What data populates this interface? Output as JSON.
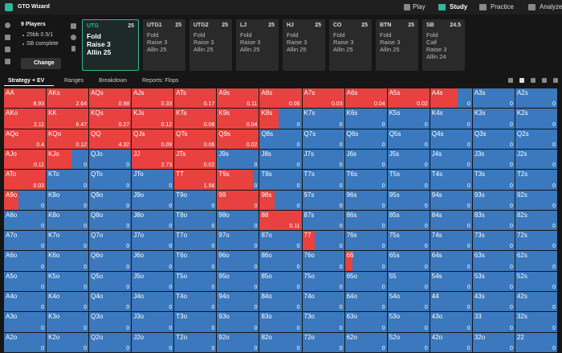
{
  "app": {
    "title": "GTO Wizard",
    "nav": [
      "Play",
      "Study",
      "Practice",
      "Analyze"
    ]
  },
  "settings": {
    "players": "9 Players",
    "stakes": "25bb 0.5/1",
    "status": "SB complete",
    "button": "Change"
  },
  "positions": [
    {
      "name": "UTG",
      "stack": 25,
      "actions": [
        "Fold",
        "Raise 3",
        "Allin 25"
      ]
    },
    {
      "name": "UTG1",
      "stack": 25,
      "actions": [
        "Fold",
        "Raise 3",
        "Allin 25"
      ]
    },
    {
      "name": "UTG2",
      "stack": 25,
      "actions": [
        "Fold",
        "Raise 3",
        "Allin 25"
      ]
    },
    {
      "name": "LJ",
      "stack": 25,
      "actions": [
        "Fold",
        "Raise 3",
        "Allin 25"
      ]
    },
    {
      "name": "HJ",
      "stack": 25,
      "actions": [
        "Fold",
        "Raise 3",
        "Allin 25"
      ]
    },
    {
      "name": "CO",
      "stack": 25,
      "actions": [
        "Fold",
        "Raise 3",
        "Allin 25"
      ]
    },
    {
      "name": "BTN",
      "stack": 25,
      "actions": [
        "Fold",
        "Raise 3",
        "Allin 25"
      ]
    },
    {
      "name": "SB",
      "stack": 24.5,
      "actions": [
        "Fold",
        "Call",
        "Raise 3",
        "Allin 24"
      ]
    }
  ],
  "tabs": [
    "Strategy + EV",
    "Ranges",
    "Breakdown",
    "Reports: Flops"
  ],
  "grid": {
    "hands": [
      [
        "AA",
        "AKs",
        "AQs",
        "AJs",
        "ATs",
        "A9s",
        "A8s",
        "A7s",
        "A6s",
        "A5s",
        "A4s",
        "A3s",
        "A2s"
      ],
      [
        "AKo",
        "KK",
        "KQs",
        "KJs",
        "KTs",
        "K9s",
        "K8s",
        "K7s",
        "K6s",
        "K5s",
        "K4s",
        "K3s",
        "K2s"
      ],
      [
        "AQo",
        "KQo",
        "QQ",
        "QJs",
        "QTs",
        "Q9s",
        "Q8s",
        "Q7s",
        "Q6s",
        "Q5s",
        "Q4s",
        "Q3s",
        "Q2s"
      ],
      [
        "AJo",
        "KJo",
        "QJo",
        "JJ",
        "JTs",
        "J9s",
        "J8s",
        "J7s",
        "J6s",
        "J5s",
        "J4s",
        "J3s",
        "J2s"
      ],
      [
        "ATo",
        "KTo",
        "QTo",
        "JTo",
        "TT",
        "T9s",
        "T8s",
        "T7s",
        "T6s",
        "T5s",
        "T4s",
        "T3s",
        "T2s"
      ],
      [
        "A9o",
        "K9o",
        "Q9o",
        "J9o",
        "T9o",
        "99",
        "98s",
        "97s",
        "96s",
        "95s",
        "94s",
        "93s",
        "92s"
      ],
      [
        "A8o",
        "K8o",
        "Q8o",
        "J8o",
        "T8o",
        "98o",
        "88",
        "87s",
        "86s",
        "85s",
        "84s",
        "83s",
        "82s"
      ],
      [
        "A7o",
        "K7o",
        "Q7o",
        "J7o",
        "T7o",
        "97o",
        "87o",
        "77",
        "76s",
        "75s",
        "74s",
        "73s",
        "72s"
      ],
      [
        "A6o",
        "K6o",
        "Q6o",
        "J6o",
        "T6o",
        "96o",
        "86o",
        "76o",
        "66",
        "65s",
        "64s",
        "63s",
        "62s"
      ],
      [
        "A5o",
        "K5o",
        "Q5o",
        "J5o",
        "T5o",
        "95o",
        "85o",
        "75o",
        "65o",
        "55",
        "54s",
        "53s",
        "52s"
      ],
      [
        "A4o",
        "K4o",
        "Q4o",
        "J4o",
        "T4o",
        "94o",
        "84o",
        "74o",
        "64o",
        "54o",
        "44",
        "43s",
        "42s"
      ],
      [
        "A3o",
        "K3o",
        "Q3o",
        "J3o",
        "T3o",
        "93o",
        "83o",
        "73o",
        "63o",
        "53o",
        "43o",
        "33",
        "32s"
      ],
      [
        "A2o",
        "K2o",
        "Q2o",
        "J2o",
        "T2o",
        "92o",
        "82o",
        "72o",
        "62o",
        "52o",
        "42o",
        "32o",
        "22"
      ]
    ],
    "ev": [
      [
        8.93,
        2.64,
        0.98,
        0.33,
        0.17,
        0.11,
        0.06,
        0.03,
        0.04,
        0.02,
        0,
        0,
        0
      ],
      [
        2.11,
        6.47,
        0.27,
        0.12,
        0.08,
        0.04,
        0,
        0,
        0,
        0,
        0,
        0,
        0
      ],
      [
        0.4,
        0.12,
        4.32,
        0.09,
        0.06,
        0.02,
        0,
        0,
        0,
        0,
        0,
        0,
        0
      ],
      [
        0.11,
        0,
        0,
        2.73,
        0.02,
        0,
        0,
        0,
        0,
        0,
        0,
        0,
        0
      ],
      [
        0.03,
        0,
        0,
        0,
        1.56,
        0,
        0,
        0,
        0,
        0,
        0,
        0,
        0
      ],
      [
        0,
        0,
        0,
        0,
        0,
        0,
        0,
        0,
        0,
        0,
        0,
        0,
        0
      ],
      [
        0,
        0,
        0,
        0,
        0,
        0,
        0.11,
        0,
        0,
        0,
        0,
        0,
        0
      ],
      [
        0,
        0,
        0,
        0,
        0,
        0,
        0,
        0,
        0,
        0,
        0,
        0,
        0
      ],
      [
        0,
        0,
        0,
        0,
        0,
        0,
        0,
        0,
        0,
        0,
        0,
        0,
        0
      ],
      [
        0,
        0,
        0,
        0,
        0,
        0,
        0,
        0,
        0,
        0,
        0,
        0,
        0
      ],
      [
        0,
        0,
        0,
        0,
        0,
        0,
        0,
        0,
        0,
        0,
        0,
        0,
        0
      ],
      [
        0,
        0,
        0,
        0,
        0,
        0,
        0,
        0,
        0,
        0,
        0,
        0,
        0
      ],
      [
        0,
        0,
        0,
        0,
        0,
        0,
        0,
        0,
        0,
        0,
        0,
        0,
        0
      ]
    ],
    "raise": [
      [
        1,
        1,
        1,
        1,
        1,
        1,
        1,
        1,
        1,
        1,
        0.65,
        0,
        0
      ],
      [
        1,
        1,
        1,
        1,
        1,
        1,
        0.45,
        0,
        0,
        0,
        0,
        0,
        0
      ],
      [
        1,
        1,
        1,
        1,
        1,
        1,
        0,
        0,
        0,
        0,
        0,
        0,
        0
      ],
      [
        1,
        0.6,
        0,
        1,
        1,
        0,
        0,
        0,
        0,
        0,
        0,
        0,
        0
      ],
      [
        1,
        0,
        0,
        0,
        1,
        0.85,
        0,
        0,
        0,
        0,
        0,
        0,
        0
      ],
      [
        0.35,
        0,
        0,
        0,
        0,
        1,
        0.35,
        0,
        0,
        0,
        0,
        0,
        0
      ],
      [
        0,
        0,
        0,
        0,
        0,
        0,
        1,
        0,
        0,
        0,
        0,
        0,
        0
      ],
      [
        0,
        0,
        0,
        0,
        0,
        0,
        0,
        0.3,
        0,
        0,
        0,
        0,
        0
      ],
      [
        0,
        0,
        0,
        0,
        0,
        0,
        0,
        0,
        0.18,
        0,
        0,
        0,
        0
      ],
      [
        0,
        0,
        0,
        0,
        0,
        0,
        0,
        0,
        0,
        0,
        0,
        0,
        0
      ],
      [
        0,
        0,
        0,
        0,
        0,
        0,
        0,
        0,
        0,
        0,
        0,
        0,
        0
      ],
      [
        0,
        0,
        0,
        0,
        0,
        0,
        0,
        0,
        0,
        0,
        0,
        0,
        0
      ],
      [
        0,
        0,
        0,
        0,
        0,
        0,
        0,
        0,
        0,
        0,
        0,
        0,
        0
      ]
    ]
  }
}
